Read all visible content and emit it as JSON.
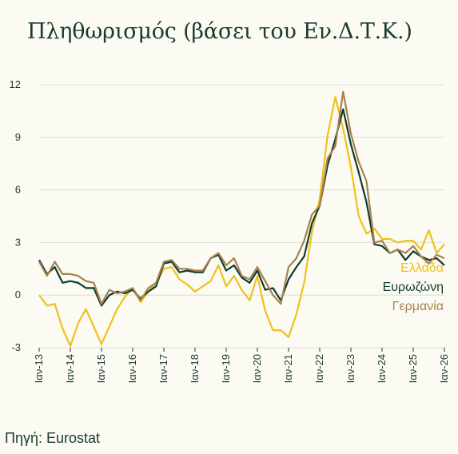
{
  "title": "Πληθωρισμός (βάσει του Εν.Δ.Τ.Κ.)",
  "source": "Πηγή: Eurostat",
  "colors": {
    "background": "#fbfbf4",
    "text": "#1b3a2d",
    "grid": "#d9dfd2"
  },
  "chart_data": {
    "type": "line",
    "title": "Πληθωρισμός (βάσει του Εν.Δ.Τ.Κ.)",
    "xlabel": "",
    "ylabel": "",
    "ylim": [
      -3,
      12
    ],
    "yticks": [
      -3,
      0,
      3,
      6,
      9,
      12
    ],
    "grid": "horizontal",
    "legend": "right, inline labels at line ends",
    "x_tick_labels": [
      "Ιαν-13",
      "Ιαν-14",
      "Ιαν-15",
      "Ιαν-16",
      "Ιαν-17",
      "Ιαν-18",
      "Ιαν-19",
      "Ιαν-20",
      "Ιαν-21",
      "Ιαν-22",
      "Ιαν-23",
      "Ιαν-24",
      "Ιαν-25",
      "Ιαν-26"
    ],
    "x_start": "2013-01",
    "series": [
      {
        "name": "Ελλάδα",
        "color": "#f0c01c",
        "points": [
          [
            "2013-01",
            0.0
          ],
          [
            "2013-04",
            -0.6
          ],
          [
            "2013-07",
            -0.5
          ],
          [
            "2013-10",
            -1.9
          ],
          [
            "2014-01",
            -2.9
          ],
          [
            "2014-04",
            -1.6
          ],
          [
            "2014-07",
            -0.8
          ],
          [
            "2014-10",
            -1.8
          ],
          [
            "2015-01",
            -2.8
          ],
          [
            "2015-04",
            -1.8
          ],
          [
            "2015-07",
            -0.8
          ],
          [
            "2015-10",
            -0.1
          ],
          [
            "2016-01",
            0.4
          ],
          [
            "2016-04",
            -0.4
          ],
          [
            "2016-07",
            0.2
          ],
          [
            "2016-10",
            0.7
          ],
          [
            "2017-01",
            1.5
          ],
          [
            "2017-04",
            1.6
          ],
          [
            "2017-07",
            0.9
          ],
          [
            "2017-10",
            0.6
          ],
          [
            "2018-01",
            0.2
          ],
          [
            "2018-04",
            0.5
          ],
          [
            "2018-07",
            0.8
          ],
          [
            "2018-10",
            1.7
          ],
          [
            "2019-01",
            0.5
          ],
          [
            "2019-04",
            1.1
          ],
          [
            "2019-07",
            0.3
          ],
          [
            "2019-10",
            -0.3
          ],
          [
            "2020-01",
            1.1
          ],
          [
            "2020-04",
            -0.9
          ],
          [
            "2020-07",
            -2.0
          ],
          [
            "2020-10",
            -2.0
          ],
          [
            "2021-01",
            -2.4
          ],
          [
            "2021-04",
            -1.1
          ],
          [
            "2021-07",
            0.7
          ],
          [
            "2021-10",
            3.6
          ],
          [
            "2022-01",
            5.5
          ],
          [
            "2022-04",
            9.1
          ],
          [
            "2022-07",
            11.3
          ],
          [
            "2022-10",
            9.5
          ],
          [
            "2023-01",
            7.3
          ],
          [
            "2023-04",
            4.5
          ],
          [
            "2023-07",
            3.5
          ],
          [
            "2023-10",
            3.8
          ],
          [
            "2024-01",
            3.2
          ],
          [
            "2024-04",
            3.2
          ],
          [
            "2024-07",
            3.0
          ],
          [
            "2024-10",
            3.1
          ],
          [
            "2025-01",
            3.1
          ],
          [
            "2025-04",
            2.6
          ],
          [
            "2025-07",
            3.7
          ],
          [
            "2025-10",
            2.4
          ],
          [
            "2026-01",
            2.9
          ]
        ]
      },
      {
        "name": "Ευρωζώνη",
        "color": "#0f3b2e",
        "points": [
          [
            "2013-01",
            2.0
          ],
          [
            "2013-04",
            1.2
          ],
          [
            "2013-07",
            1.6
          ],
          [
            "2013-10",
            0.7
          ],
          [
            "2014-01",
            0.8
          ],
          [
            "2014-04",
            0.7
          ],
          [
            "2014-07",
            0.4
          ],
          [
            "2014-10",
            0.4
          ],
          [
            "2015-01",
            -0.6
          ],
          [
            "2015-04",
            0.0
          ],
          [
            "2015-07",
            0.2
          ],
          [
            "2015-10",
            0.1
          ],
          [
            "2016-01",
            0.3
          ],
          [
            "2016-04",
            -0.2
          ],
          [
            "2016-07",
            0.2
          ],
          [
            "2016-10",
            0.5
          ],
          [
            "2017-01",
            1.8
          ],
          [
            "2017-04",
            1.9
          ],
          [
            "2017-07",
            1.3
          ],
          [
            "2017-10",
            1.4
          ],
          [
            "2018-01",
            1.3
          ],
          [
            "2018-04",
            1.3
          ],
          [
            "2018-07",
            2.1
          ],
          [
            "2018-10",
            2.3
          ],
          [
            "2019-01",
            1.4
          ],
          [
            "2019-04",
            1.7
          ],
          [
            "2019-07",
            1.0
          ],
          [
            "2019-10",
            0.7
          ],
          [
            "2020-01",
            1.4
          ],
          [
            "2020-04",
            0.3
          ],
          [
            "2020-07",
            0.4
          ],
          [
            "2020-10",
            -0.3
          ],
          [
            "2021-01",
            0.9
          ],
          [
            "2021-04",
            1.6
          ],
          [
            "2021-07",
            2.2
          ],
          [
            "2021-10",
            4.1
          ],
          [
            "2022-01",
            5.1
          ],
          [
            "2022-04",
            7.4
          ],
          [
            "2022-07",
            8.9
          ],
          [
            "2022-10",
            10.6
          ],
          [
            "2023-01",
            8.6
          ],
          [
            "2023-04",
            7.0
          ],
          [
            "2023-07",
            5.3
          ],
          [
            "2023-10",
            2.9
          ],
          [
            "2024-01",
            2.8
          ],
          [
            "2024-04",
            2.4
          ],
          [
            "2024-07",
            2.6
          ],
          [
            "2024-10",
            2.0
          ],
          [
            "2025-01",
            2.5
          ],
          [
            "2025-04",
            2.2
          ],
          [
            "2025-07",
            2.0
          ],
          [
            "2025-10",
            2.1
          ],
          [
            "2026-01",
            1.7
          ]
        ]
      },
      {
        "name": "Γερμανία",
        "color": "#a7814d",
        "points": [
          [
            "2013-01",
            1.9
          ],
          [
            "2013-04",
            1.1
          ],
          [
            "2013-07",
            1.9
          ],
          [
            "2013-10",
            1.2
          ],
          [
            "2014-01",
            1.2
          ],
          [
            "2014-04",
            1.1
          ],
          [
            "2014-07",
            0.8
          ],
          [
            "2014-10",
            0.7
          ],
          [
            "2015-01",
            -0.5
          ],
          [
            "2015-04",
            0.3
          ],
          [
            "2015-07",
            0.1
          ],
          [
            "2015-10",
            0.2
          ],
          [
            "2016-01",
            0.4
          ],
          [
            "2016-04",
            -0.3
          ],
          [
            "2016-07",
            0.4
          ],
          [
            "2016-10",
            0.7
          ],
          [
            "2017-01",
            1.9
          ],
          [
            "2017-04",
            2.0
          ],
          [
            "2017-07",
            1.5
          ],
          [
            "2017-10",
            1.5
          ],
          [
            "2018-01",
            1.4
          ],
          [
            "2018-04",
            1.4
          ],
          [
            "2018-07",
            2.1
          ],
          [
            "2018-10",
            2.4
          ],
          [
            "2019-01",
            1.7
          ],
          [
            "2019-04",
            2.1
          ],
          [
            "2019-07",
            1.1
          ],
          [
            "2019-10",
            0.9
          ],
          [
            "2020-01",
            1.6
          ],
          [
            "2020-04",
            0.8
          ],
          [
            "2020-07",
            0.0
          ],
          [
            "2020-10",
            -0.5
          ],
          [
            "2021-01",
            1.6
          ],
          [
            "2021-04",
            2.1
          ],
          [
            "2021-07",
            3.1
          ],
          [
            "2021-10",
            4.6
          ],
          [
            "2022-01",
            5.1
          ],
          [
            "2022-04",
            7.8
          ],
          [
            "2022-07",
            8.5
          ],
          [
            "2022-10",
            11.6
          ],
          [
            "2023-01",
            9.2
          ],
          [
            "2023-04",
            7.6
          ],
          [
            "2023-07",
            6.5
          ],
          [
            "2023-10",
            3.0
          ],
          [
            "2024-01",
            3.1
          ],
          [
            "2024-04",
            2.4
          ],
          [
            "2024-07",
            2.6
          ],
          [
            "2024-10",
            2.4
          ],
          [
            "2025-01",
            2.8
          ],
          [
            "2025-04",
            2.2
          ],
          [
            "2025-07",
            1.8
          ],
          [
            "2025-10",
            2.3
          ],
          [
            "2026-01",
            2.1
          ]
        ]
      }
    ]
  }
}
